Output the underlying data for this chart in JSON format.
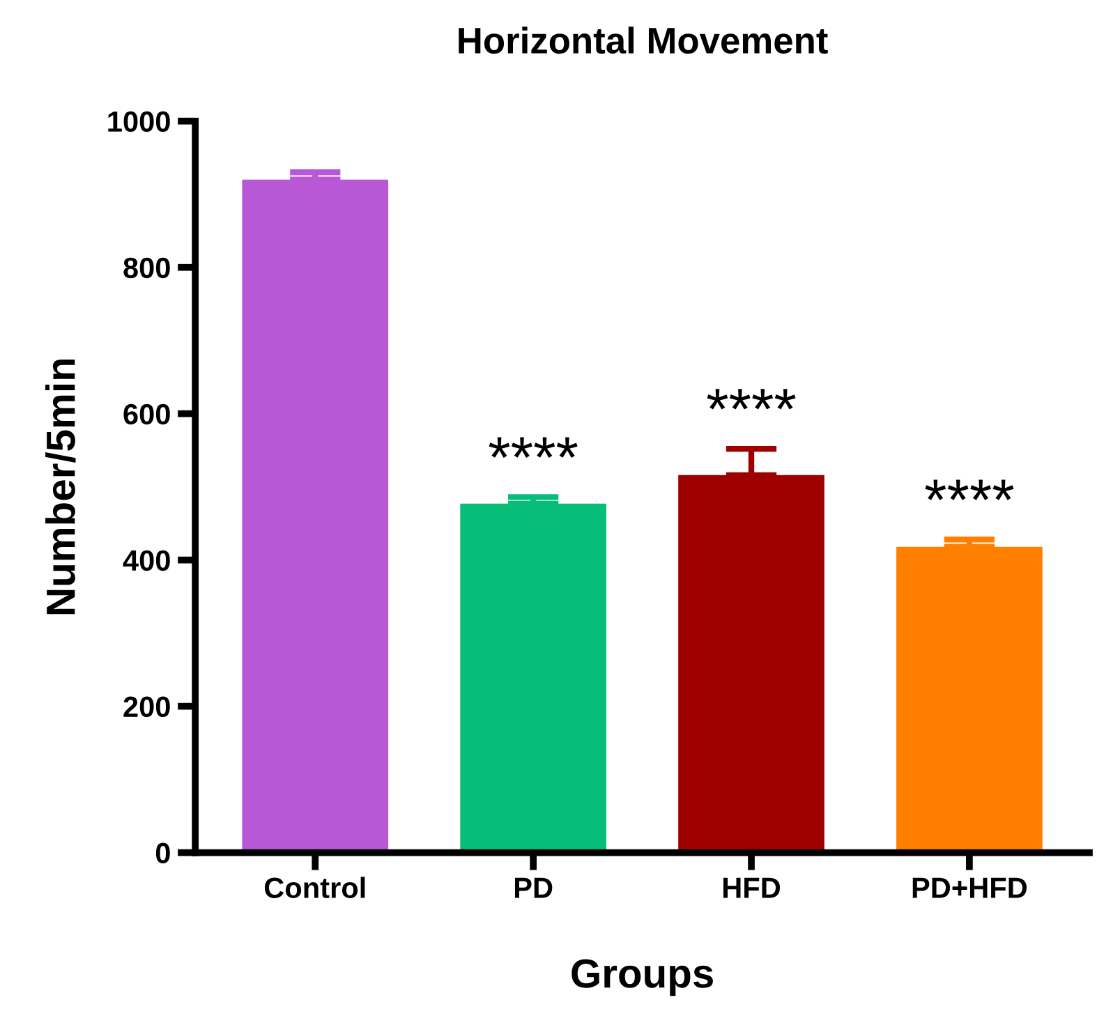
{
  "chart_data": {
    "type": "bar",
    "title": "Horizontal Movement",
    "xlabel": "Groups",
    "ylabel": "Number/5min",
    "categories": [
      "Control",
      "PD",
      "HFD",
      "PD+HFD"
    ],
    "values": [
      920,
      477,
      516,
      418
    ],
    "colors": [
      "#b858d6",
      "#07be78",
      "#9e0000",
      "#ff8000"
    ],
    "errors": [
      [
        920,
        930
      ],
      [
        477,
        486
      ],
      [
        516,
        552
      ],
      [
        418,
        428
      ]
    ],
    "ylim": [
      0,
      1000
    ],
    "yticks": [
      0,
      200,
      400,
      600,
      800,
      1000
    ],
    "grid": false,
    "annotations": [
      {
        "text": "****",
        "x": "PD",
        "y": 486
      },
      {
        "text": "****",
        "x": "HFD",
        "y": 552
      },
      {
        "text": "****",
        "x": "PD+HFD",
        "y": 428
      }
    ]
  }
}
